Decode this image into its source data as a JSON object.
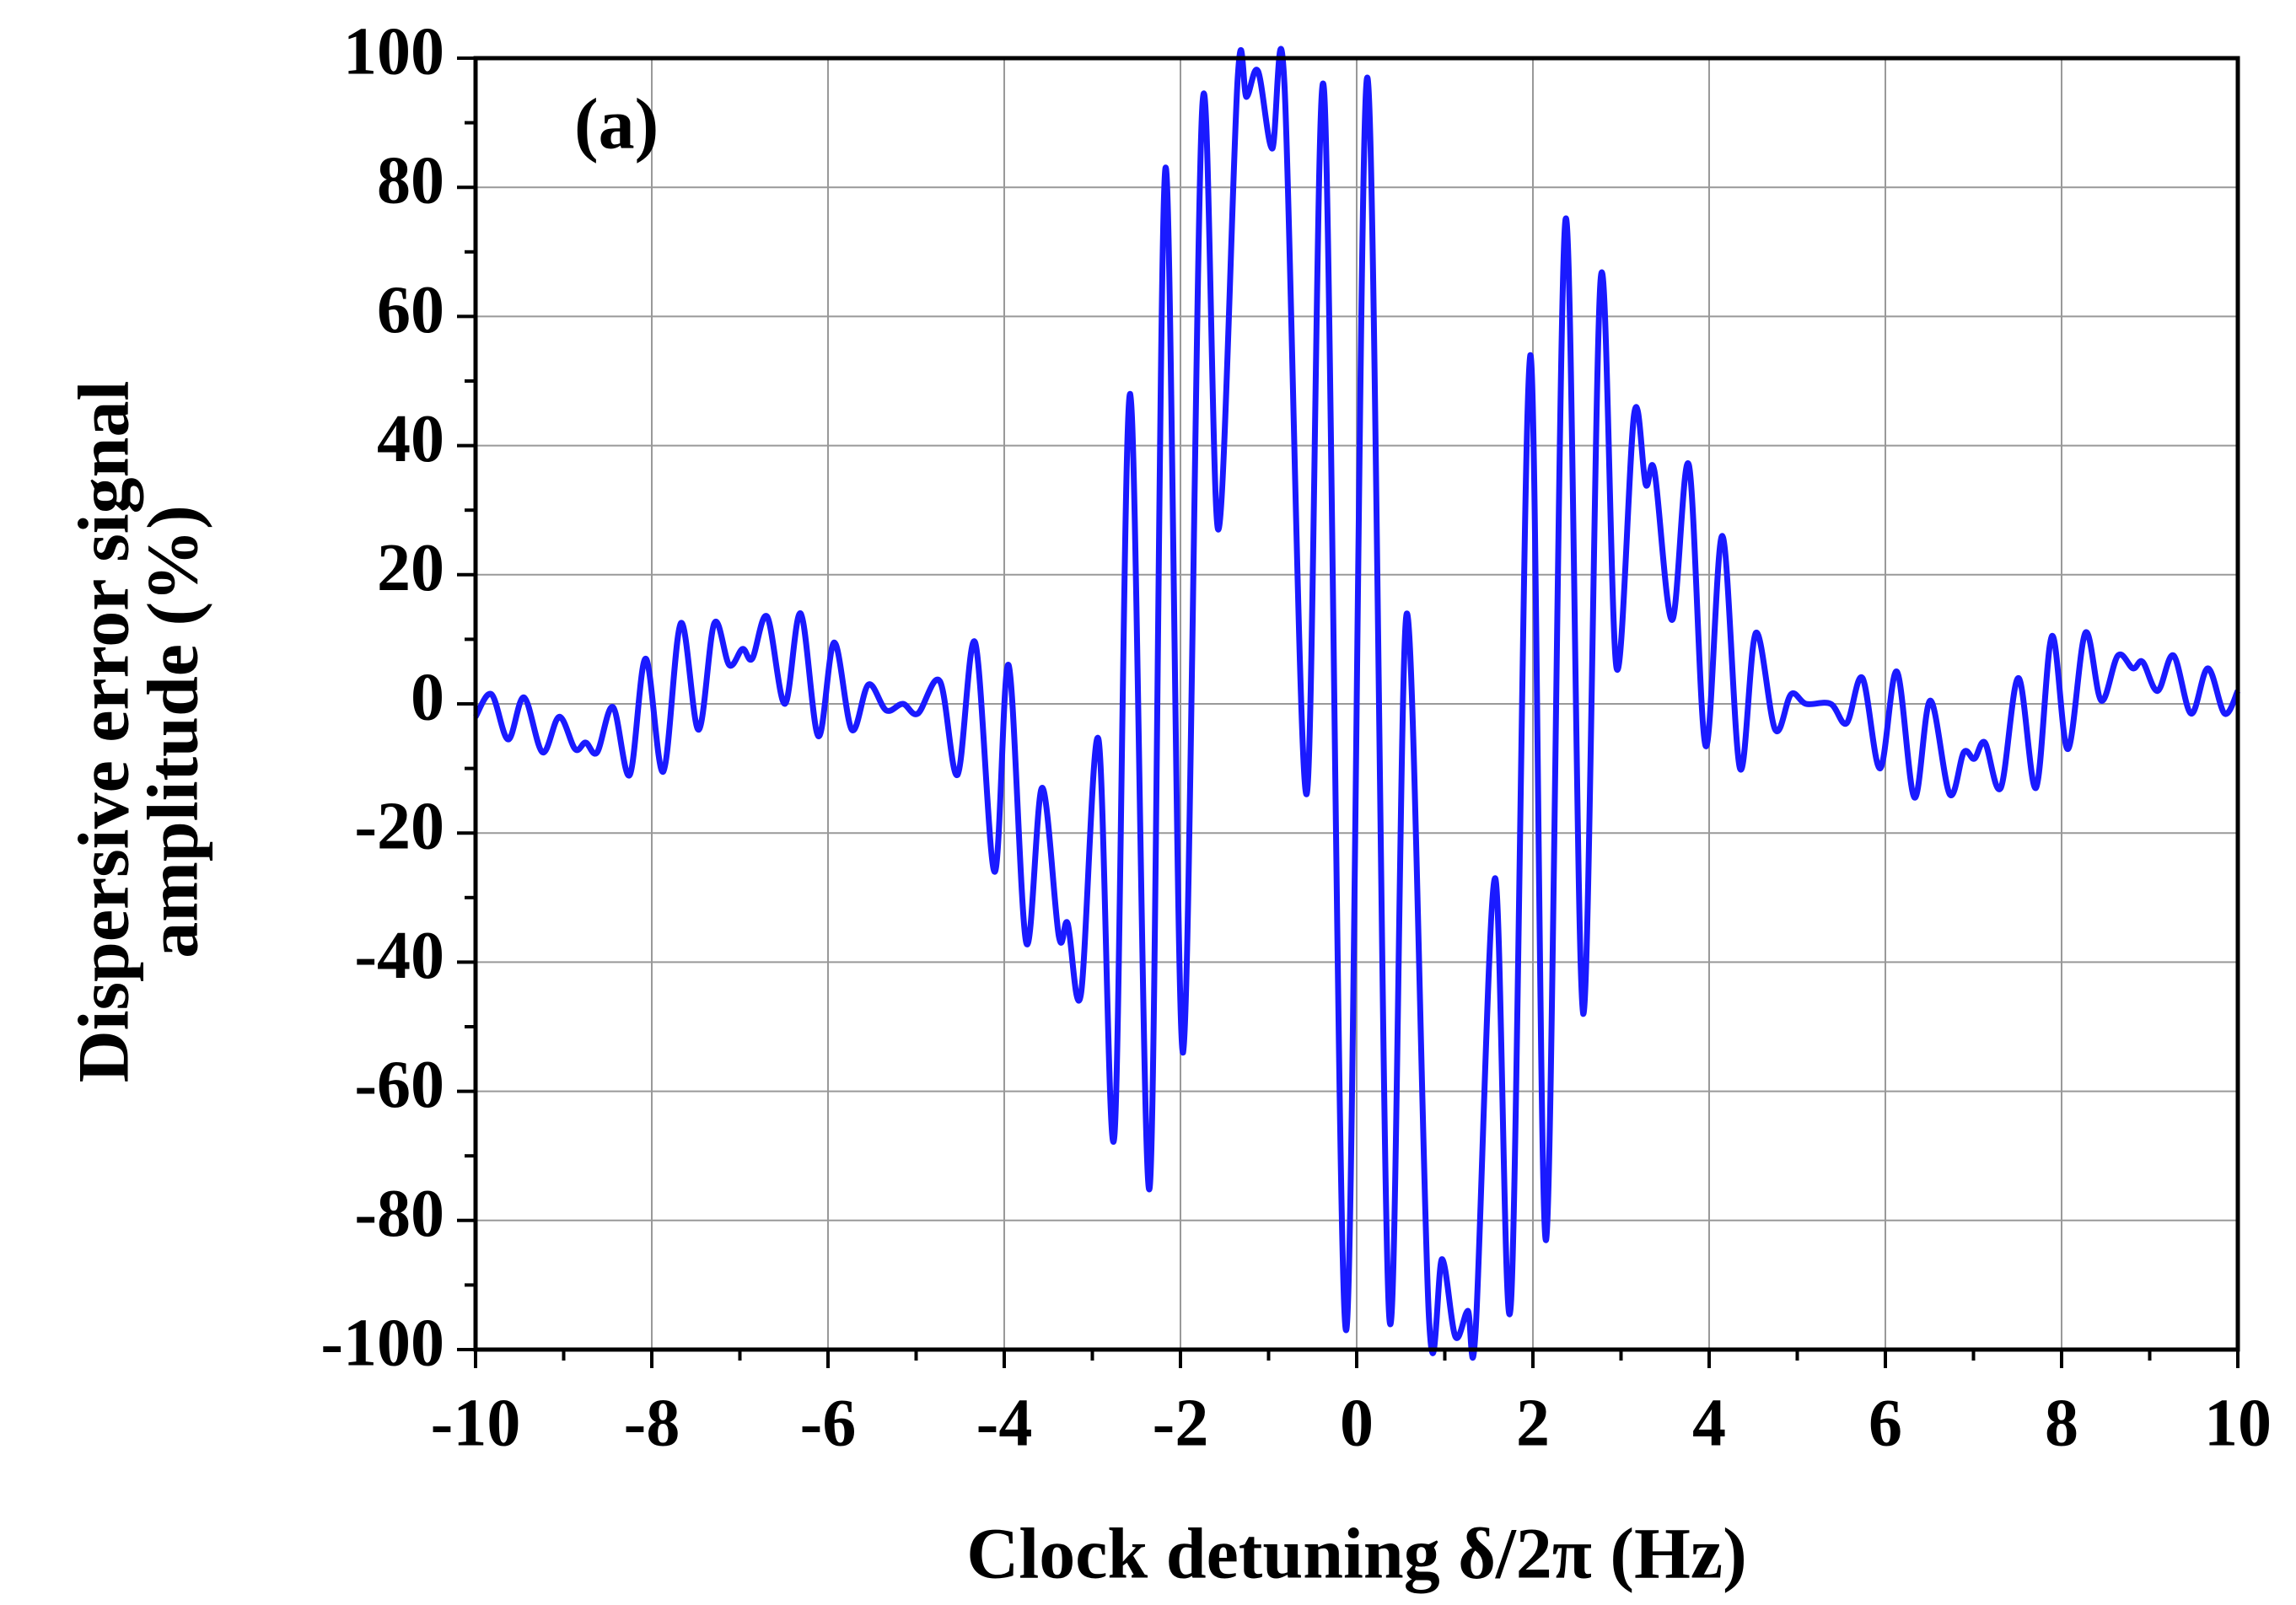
{
  "chart_data": {
    "type": "line",
    "annotation": "(a)",
    "xlabel": "Clock detuning δ/2π (Hz)",
    "ylabel": [
      "Dispersive error signal",
      "amplitude (%)"
    ],
    "xlim": [
      -10,
      10
    ],
    "ylim": [
      -100,
      100
    ],
    "xticks": [
      -10,
      -8,
      -6,
      -4,
      -2,
      0,
      2,
      4,
      6,
      8,
      10
    ],
    "yticks": [
      -100,
      -80,
      -60,
      -40,
      -20,
      0,
      20,
      40,
      60,
      80,
      100
    ],
    "xminorticks": [
      -9,
      -7,
      -5,
      -3,
      -1,
      1,
      3,
      5,
      7,
      9
    ],
    "yminorticks": [
      -90,
      -70,
      -50,
      -30,
      -10,
      10,
      30,
      50,
      70,
      90
    ],
    "grid": true,
    "series": [
      {
        "color": "#1a1aff",
        "x": [
          -10,
          -9.82,
          -9.63,
          -9.45,
          -9.24,
          -9.05,
          -8.87,
          -8.75,
          -8.62,
          -8.44,
          -8.25,
          -8.07,
          -7.87,
          -7.67,
          -7.47,
          -7.29,
          -7.12,
          -6.97,
          -6.86,
          -6.69,
          -6.49,
          -6.31,
          -6.11,
          -5.93,
          -5.73,
          -5.54,
          -5.34,
          -5.15,
          -4.98,
          -4.73,
          -4.53,
          -4.33,
          -4.11,
          -3.95,
          -3.75,
          -3.57,
          -3.38,
          -3.28,
          -3.13,
          -2.93,
          -2.75,
          -2.57,
          -2.35,
          -2.17,
          -1.97,
          -1.75,
          -1.57,
          -1.35,
          -1.25,
          -1.12,
          -0.96,
          -0.82,
          -0.57,
          -0.37,
          -0.12,
          0.12,
          0.37,
          0.57,
          0.82,
          0.97,
          1.12,
          1.26,
          1.35,
          1.57,
          1.75,
          1.97,
          2.15,
          2.37,
          2.57,
          2.77,
          2.95,
          3.15,
          3.28,
          3.38,
          3.58,
          3.77,
          3.96,
          4.15,
          4.35,
          4.53,
          4.75,
          4.93,
          5.1,
          5.38,
          5.56,
          5.74,
          5.94,
          6.13,
          6.33,
          6.51,
          6.73,
          6.89,
          7.01,
          7.13,
          7.31,
          7.51,
          7.71,
          7.89,
          8.07,
          8.27,
          8.45,
          8.64,
          8.81,
          8.92,
          9.09,
          9.27,
          9.47,
          9.66,
          9.85,
          10
        ],
        "values": [
          -2,
          1.5,
          -5.5,
          1,
          -7.5,
          -2,
          -7,
          -6,
          -7.5,
          -0.5,
          -11,
          7,
          -10.5,
          12.5,
          -4,
          12.5,
          6,
          8.5,
          7,
          13.5,
          0,
          14,
          -5,
          9.5,
          -4,
          3,
          -1,
          0,
          -1.5,
          3.5,
          -11,
          9.5,
          -26,
          6,
          -37,
          -13,
          -36,
          -34,
          -45,
          -5.5,
          -67,
          48,
          -75,
          83,
          -54,
          93,
          27,
          97,
          94,
          98,
          86,
          96,
          -14,
          95,
          -97,
          97,
          -95,
          14,
          -95,
          -86,
          -98,
          -94,
          -97,
          -27,
          -93,
          54,
          -83,
          75,
          -48,
          66,
          5.5,
          45,
          34,
          36,
          13,
          37,
          -6.5,
          26,
          -10,
          11,
          -4,
          1.5,
          0,
          0,
          -3,
          4,
          -10,
          5,
          -14.5,
          0.5,
          -14,
          -7.5,
          -8.5,
          -6,
          -13,
          4,
          -13,
          10.5,
          -7,
          11,
          0.5,
          7.5,
          5.5,
          6.5,
          2,
          7.5,
          -1.5,
          5.5,
          -1.5,
          2
        ]
      }
    ]
  }
}
